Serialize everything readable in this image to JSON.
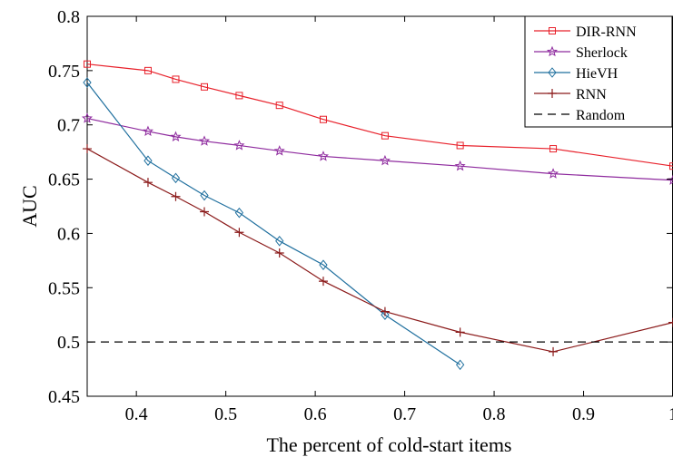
{
  "chart_data": {
    "type": "line",
    "xlabel": "The percent of cold-start items",
    "ylabel": "AUC",
    "xlim": [
      0.345,
      1.0
    ],
    "ylim": [
      0.45,
      0.8
    ],
    "xticks": [
      0.4,
      0.5,
      0.6,
      0.7,
      0.8,
      0.9,
      1.0
    ],
    "xtick_labels": [
      "0.4",
      "0.5",
      "0.6",
      "0.7",
      "0.8",
      "0.9",
      "1"
    ],
    "yticks": [
      0.45,
      0.5,
      0.55,
      0.6,
      0.65,
      0.7,
      0.75,
      0.8
    ],
    "ytick_labels": [
      "0.45",
      "0.5",
      "0.55",
      "0.6",
      "0.65",
      "0.7",
      "0.75",
      "0.8"
    ],
    "grid": false,
    "legend_position": "top-right",
    "series": [
      {
        "name": "DIR-RNN",
        "color": "#e8202a",
        "marker": "square",
        "x": [
          0.345,
          0.413,
          0.444,
          0.476,
          0.515,
          0.56,
          0.609,
          0.678,
          0.762,
          0.866,
          1.0
        ],
        "y": [
          0.756,
          0.75,
          0.742,
          0.735,
          0.727,
          0.718,
          0.705,
          0.69,
          0.681,
          0.678,
          0.662
        ]
      },
      {
        "name": "Sherlock",
        "color": "#8e2a9e",
        "marker": "star",
        "x": [
          0.345,
          0.413,
          0.444,
          0.476,
          0.515,
          0.56,
          0.609,
          0.678,
          0.762,
          0.866,
          1.0
        ],
        "y": [
          0.706,
          0.694,
          0.689,
          0.685,
          0.681,
          0.676,
          0.671,
          0.667,
          0.662,
          0.655,
          0.649
        ]
      },
      {
        "name": "HieVH",
        "color": "#1f6f9e",
        "marker": "diamond",
        "x": [
          0.345,
          0.413,
          0.444,
          0.476,
          0.515,
          0.56,
          0.609,
          0.678,
          0.762
        ],
        "y": [
          0.739,
          0.667,
          0.651,
          0.635,
          0.619,
          0.593,
          0.571,
          0.525,
          0.479
        ]
      },
      {
        "name": "RNN",
        "color": "#8b1a1a",
        "marker": "plus",
        "x": [
          0.345,
          0.413,
          0.444,
          0.476,
          0.515,
          0.56,
          0.609,
          0.678,
          0.762,
          0.866,
          1.0
        ],
        "y": [
          0.678,
          0.647,
          0.634,
          0.62,
          0.601,
          0.582,
          0.556,
          0.528,
          0.509,
          0.491,
          0.518
        ]
      },
      {
        "name": "Random",
        "color": "#000000",
        "marker": "none",
        "dash": "dashed",
        "x": [
          0.345,
          1.0
        ],
        "y": [
          0.5,
          0.5
        ]
      }
    ]
  }
}
